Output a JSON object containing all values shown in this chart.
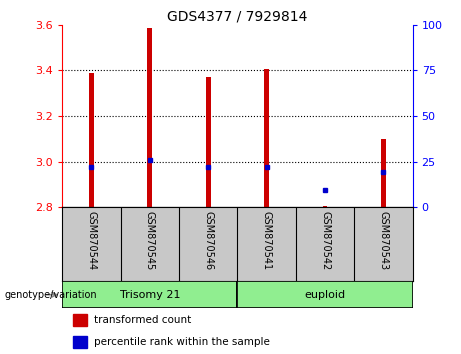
{
  "title": "GDS4377 / 7929814",
  "samples": [
    "GSM870544",
    "GSM870545",
    "GSM870546",
    "GSM870541",
    "GSM870542",
    "GSM870543"
  ],
  "red_values": [
    3.39,
    3.585,
    3.37,
    3.405,
    2.805,
    3.1
  ],
  "blue_values": [
    2.975,
    3.005,
    2.975,
    2.975,
    2.875,
    2.955
  ],
  "bar_bottom": 2.8,
  "ylim": [
    2.8,
    3.6
  ],
  "y2lim": [
    0,
    100
  ],
  "yticks": [
    2.8,
    3.0,
    3.2,
    3.4,
    3.6
  ],
  "y2ticks": [
    0,
    25,
    50,
    75,
    100
  ],
  "gridlines": [
    3.0,
    3.2,
    3.4
  ],
  "bar_color": "#CC0000",
  "dot_color": "#0000CC",
  "bar_width": 0.08,
  "bg_plot": "#FFFFFF",
  "tick_area_color": "#C8C8C8",
  "group_color": "#90EE90",
  "title_fontsize": 10,
  "axis_fontsize": 8,
  "sample_fontsize": 7,
  "group_fontsize": 8,
  "legend_fontsize": 7.5,
  "trisomy_label": "Trisomy 21",
  "euploid_label": "euploid",
  "trisomy_count": 3,
  "euploid_count": 3,
  "genotype_label": "genotype/variation",
  "legend_red_label": "transformed count",
  "legend_blue_label": "percentile rank within the sample"
}
